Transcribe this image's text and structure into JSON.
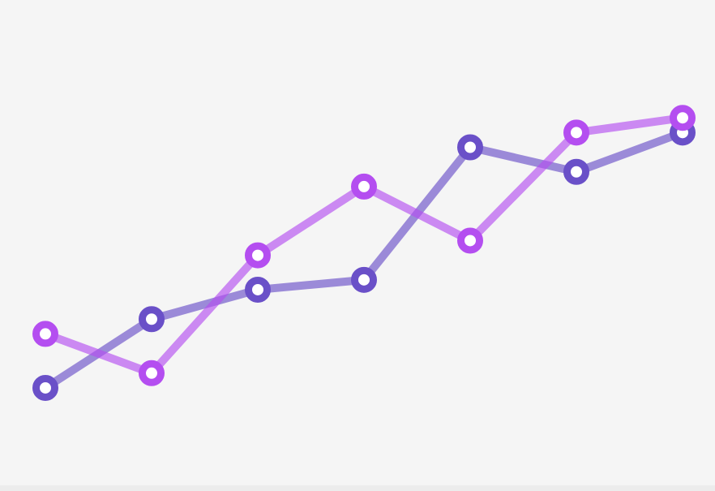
{
  "chart_data": {
    "type": "line",
    "categories": [
      null,
      null,
      null,
      null,
      null,
      null,
      null
    ],
    "series": [
      {
        "color": "#6a50c8",
        "values": [
          21,
          35,
          41,
          43,
          70,
          65,
          73
        ]
      },
      {
        "color": "#b44ef0",
        "values": [
          32,
          24,
          48,
          62,
          51,
          73,
          76
        ]
      }
    ],
    "ylim": [
      0,
      100
    ]
  }
}
